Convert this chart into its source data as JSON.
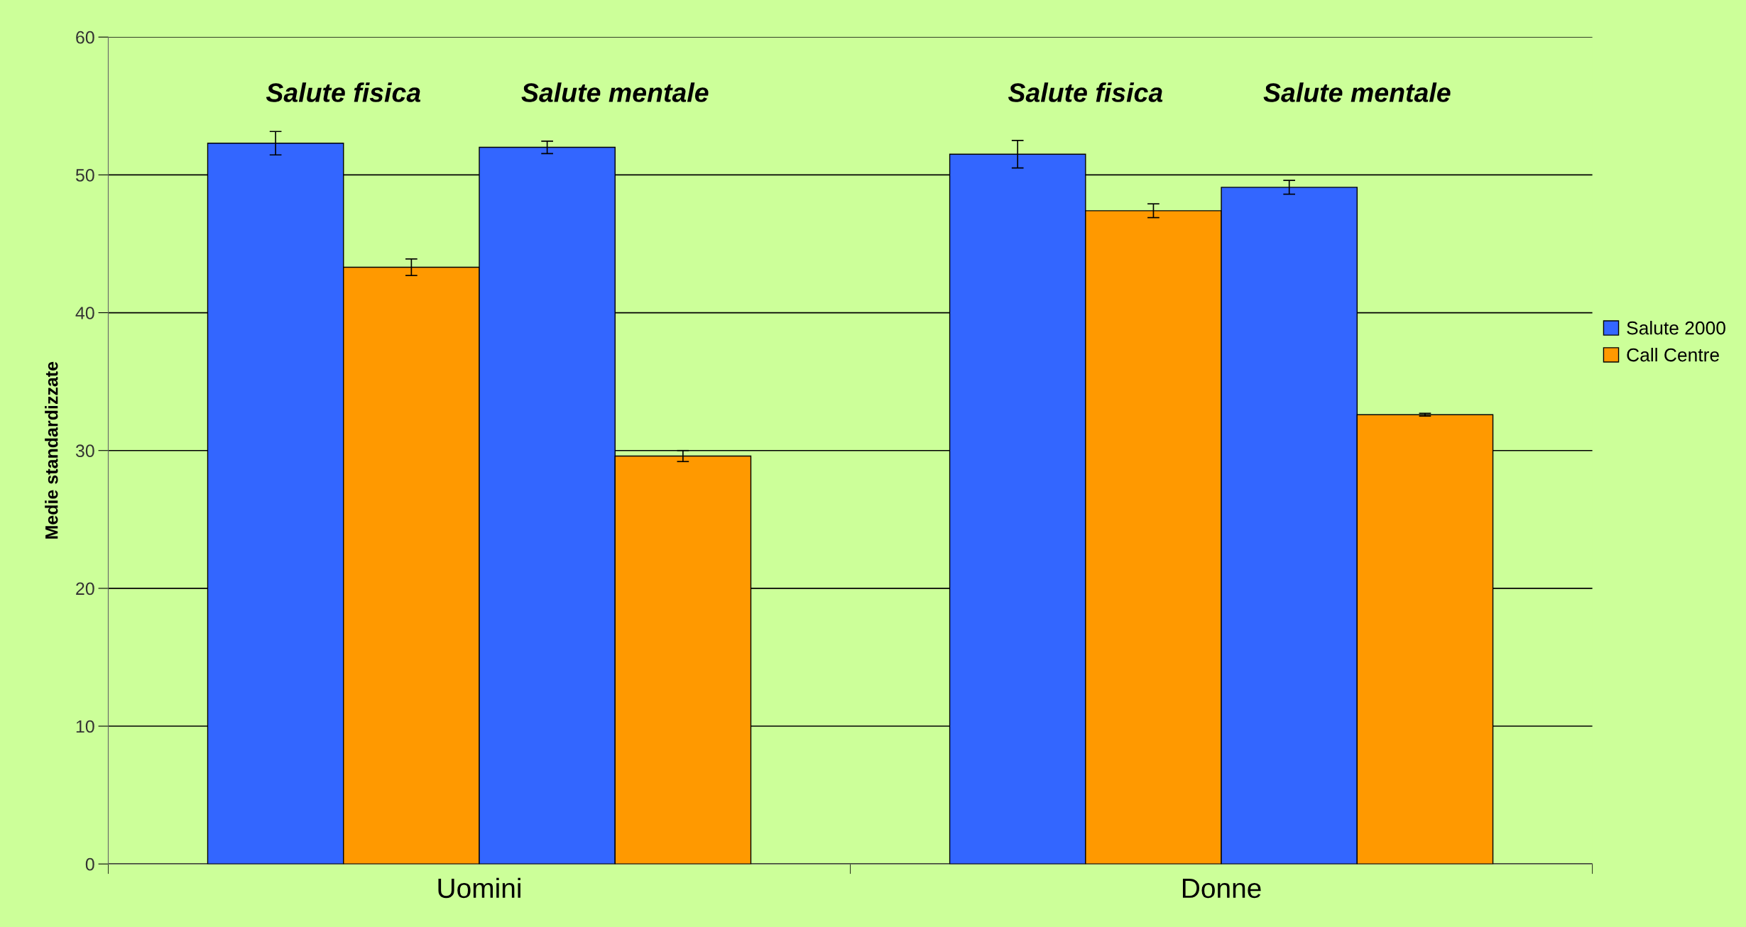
{
  "chart_data": {
    "type": "bar",
    "ylabel": "Medie standardizzate",
    "categories": [
      "Uomini",
      "Donne"
    ],
    "series": [
      {
        "name": "Salute 2000",
        "color": "#3366ff",
        "values": [
          52.3,
          51.5
        ],
        "errors": [
          0.85,
          1.0
        ]
      },
      {
        "name": "Call Centre",
        "color": "#ff9900",
        "values": [
          43.3,
          47.4
        ],
        "errors": [
          0.6,
          0.5
        ]
      },
      {
        "color": "#3366ff",
        "values": [
          52.0,
          49.1
        ],
        "errors": [
          0.45,
          0.5
        ]
      },
      {
        "color": "#ff9900",
        "values": [
          29.6,
          32.6
        ],
        "errors": [
          0.4,
          0.1
        ]
      }
    ],
    "annotations": [
      "Salute fisica",
      "Salute mentale",
      "Salute fisica",
      "Salute mentale"
    ],
    "ylim": [
      0,
      60
    ],
    "yticks": [
      0,
      10,
      20,
      30,
      40,
      50,
      60
    ],
    "grid": "y",
    "legend": "right"
  }
}
